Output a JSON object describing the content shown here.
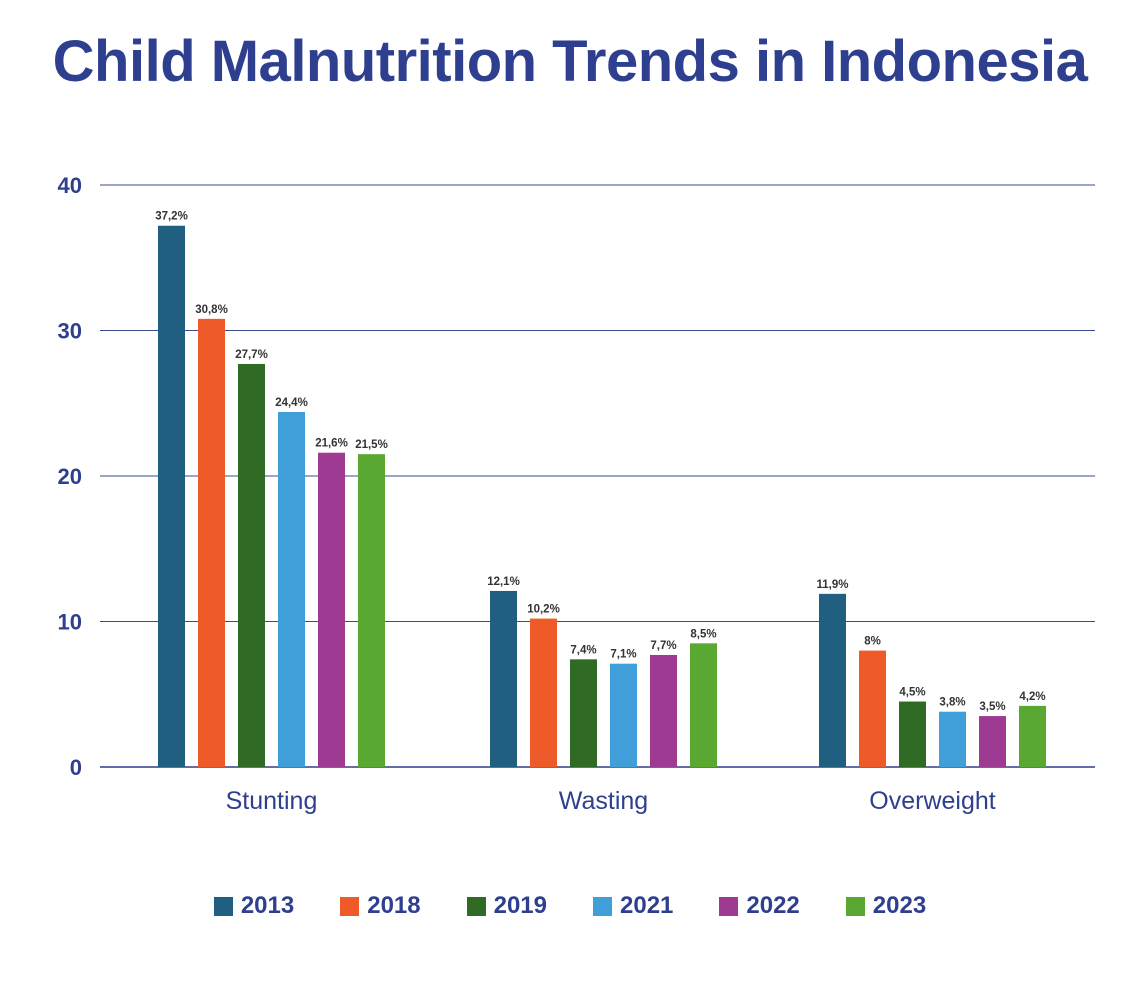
{
  "chart_data": {
    "type": "bar",
    "title": "Child Malnutrition Trends in Indonesia",
    "categories": [
      "Stunting",
      "Wasting",
      "Overweight"
    ],
    "series": [
      {
        "name": "2013",
        "color": "#215f80",
        "values": [
          37.2,
          12.1,
          11.9
        ],
        "labels": [
          "37,2%",
          "12,1%",
          "11,9%"
        ]
      },
      {
        "name": "2018",
        "color": "#ee5a28",
        "values": [
          30.8,
          10.2,
          8
        ],
        "labels": [
          "30,8%",
          "10,2%",
          "8%"
        ]
      },
      {
        "name": "2019",
        "color": "#2f6b25",
        "values": [
          27.7,
          7.4,
          4.5
        ],
        "labels": [
          "27,7%",
          "7,4%",
          "4,5%"
        ]
      },
      {
        "name": "2021",
        "color": "#409fd9",
        "values": [
          24.4,
          7.1,
          3.8
        ],
        "labels": [
          "24,4%",
          "7,1%",
          "3,8%"
        ]
      },
      {
        "name": "2022",
        "color": "#9e3a92",
        "values": [
          21.6,
          7.7,
          3.5
        ],
        "labels": [
          "21,6%",
          "7,7%",
          "3,5%"
        ]
      },
      {
        "name": "2023",
        "color": "#58a832",
        "values": [
          21.5,
          8.5,
          4.2
        ],
        "labels": [
          "21,5%",
          "8,5%",
          "4,2%"
        ]
      }
    ],
    "yticks": [
      0,
      10,
      20,
      30,
      40
    ],
    "ylim": [
      0,
      40
    ],
    "grid": true,
    "legend_position": "bottom"
  }
}
